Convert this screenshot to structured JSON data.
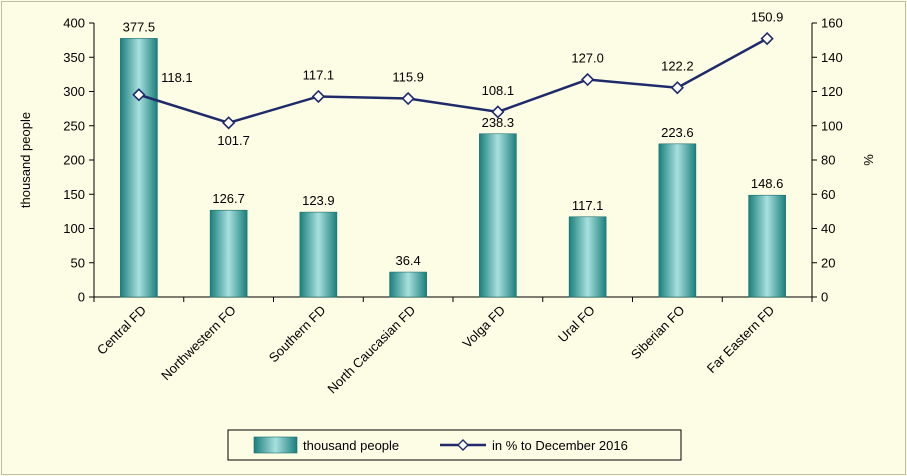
{
  "chart_data": {
    "type": "bar+line",
    "categories": [
      "Central FD",
      "Northwestern FO",
      "Southern FD",
      "North Caucasian FD",
      "Volga FD",
      "Ural FO",
      "Siberian FO",
      "Far Eastern FD"
    ],
    "series": [
      {
        "name": "thousand people",
        "type": "bar",
        "axis": "left",
        "values": [
          377.5,
          126.7,
          123.9,
          36.4,
          238.3,
          117.1,
          223.6,
          148.6
        ],
        "labels": [
          "377.5",
          "126.7",
          "123.9",
          "36.4",
          "238.3",
          "117.1",
          "223.6",
          "148.6"
        ],
        "color": "#2a9a98"
      },
      {
        "name": "in % to December 2016",
        "type": "line",
        "axis": "right",
        "values": [
          118.1,
          101.7,
          117.1,
          115.9,
          108.1,
          127.0,
          122.2,
          150.9
        ],
        "labels": [
          "118.1",
          "101.7",
          "117.1",
          "115.9",
          "108.1",
          "127.0",
          "122.2",
          "150.9"
        ],
        "color": "#1f2a6b"
      }
    ],
    "y_left": {
      "label": "thousand people",
      "min": 0,
      "max": 400,
      "ticks": [
        "0",
        "50",
        "100",
        "150",
        "200",
        "250",
        "300",
        "350",
        "400"
      ]
    },
    "y_right": {
      "label": "%",
      "min": 0,
      "max": 160,
      "ticks": [
        "0",
        "20",
        "40",
        "60",
        "80",
        "100",
        "120",
        "140",
        "160"
      ]
    },
    "legend_position": "bottom",
    "grid": false
  }
}
